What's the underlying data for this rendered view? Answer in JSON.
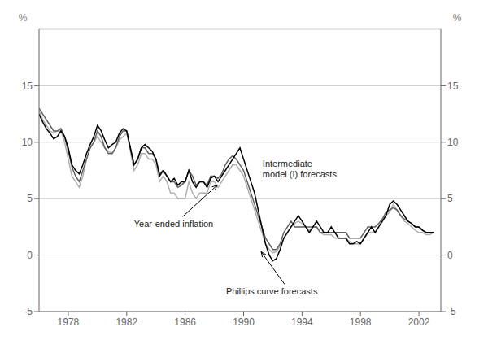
{
  "chart_data": {
    "type": "line",
    "ylabel": "%",
    "y2label": "%",
    "xlim": [
      1976.0,
      2003.5
    ],
    "xticks": [
      1978,
      1982,
      1986,
      1990,
      1994,
      1998,
      2002
    ],
    "ylim": [
      -5,
      20
    ],
    "yticks": [
      -5,
      0,
      5,
      10,
      15
    ],
    "y2lim": [
      -5,
      20
    ],
    "y2ticks": [
      -5,
      0,
      5,
      10,
      15
    ],
    "grid": true,
    "x": [
      1976.0,
      1976.25,
      1976.5,
      1976.75,
      1977.0,
      1977.25,
      1977.5,
      1977.75,
      1978.0,
      1978.25,
      1978.5,
      1978.75,
      1979.0,
      1979.25,
      1979.5,
      1979.75,
      1980.0,
      1980.25,
      1980.5,
      1980.75,
      1981.0,
      1981.25,
      1981.5,
      1981.75,
      1982.0,
      1982.25,
      1982.5,
      1982.75,
      1983.0,
      1983.25,
      1983.5,
      1983.75,
      1984.0,
      1984.25,
      1984.5,
      1984.75,
      1985.0,
      1985.25,
      1985.5,
      1985.75,
      1986.0,
      1986.25,
      1986.5,
      1986.75,
      1987.0,
      1987.25,
      1987.5,
      1987.75,
      1988.0,
      1988.25,
      1988.5,
      1988.75,
      1989.0,
      1989.25,
      1989.5,
      1989.75,
      1990.0,
      1990.25,
      1990.5,
      1990.75,
      1991.0,
      1991.25,
      1991.5,
      1991.75,
      1992.0,
      1992.25,
      1992.5,
      1992.75,
      1993.0,
      1993.25,
      1993.5,
      1993.75,
      1994.0,
      1994.25,
      1994.5,
      1994.75,
      1995.0,
      1995.25,
      1995.5,
      1995.75,
      1996.0,
      1996.25,
      1996.5,
      1996.75,
      1997.0,
      1997.25,
      1997.5,
      1997.75,
      1998.0,
      1998.25,
      1998.5,
      1998.75,
      1999.0,
      1999.25,
      1999.5,
      1999.75,
      2000.0,
      2000.25,
      2000.5,
      2000.75,
      2001.0,
      2001.25,
      2001.5,
      2001.75,
      2002.0,
      2002.25,
      2002.5,
      2002.75,
      2003.0
    ],
    "series": [
      {
        "color": "#b0b0b0",
        "values": [
          12.8,
          12.0,
          11.5,
          11.0,
          10.8,
          11.0,
          11.0,
          10.0,
          8.5,
          7.0,
          6.5,
          6.0,
          7.0,
          8.5,
          9.5,
          10.0,
          10.5,
          10.0,
          9.5,
          9.2,
          9.0,
          9.5,
          10.2,
          10.5,
          10.8,
          9.2,
          7.5,
          8.0,
          9.0,
          9.0,
          8.5,
          8.5,
          8.0,
          6.5,
          7.0,
          6.5,
          5.5,
          5.5,
          5.0,
          5.0,
          5.0,
          6.5,
          5.5,
          5.0,
          5.5,
          5.5,
          5.5,
          6.5,
          6.5,
          6.0,
          6.5,
          7.0,
          7.5,
          8.0,
          8.0,
          7.5,
          7.0,
          6.0,
          5.0,
          4.0,
          3.0,
          2.0,
          1.0,
          0.5,
          0.2,
          0.3,
          0.8,
          1.5,
          2.0,
          2.5,
          2.8,
          3.0,
          2.8,
          2.5,
          2.2,
          2.5,
          2.5,
          2.0,
          1.8,
          1.8,
          1.8,
          1.5,
          1.5,
          1.5,
          1.5,
          1.2,
          1.0,
          1.0,
          1.0,
          1.5,
          2.0,
          2.0,
          2.0,
          2.5,
          3.0,
          3.5,
          3.8,
          4.5,
          4.0,
          3.5,
          3.0,
          2.8,
          2.5,
          2.2,
          2.0,
          2.0,
          1.8,
          1.8,
          2.0
        ]
      },
      {
        "color": "#606060",
        "values": [
          13.0,
          12.5,
          12.0,
          11.5,
          11.0,
          11.0,
          11.2,
          10.5,
          9.2,
          7.8,
          7.0,
          6.5,
          7.5,
          8.5,
          9.5,
          10.0,
          11.0,
          10.5,
          9.5,
          9.0,
          9.0,
          9.5,
          10.5,
          11.0,
          11.0,
          9.5,
          8.0,
          8.5,
          9.5,
          9.5,
          9.0,
          9.0,
          8.5,
          7.2,
          7.5,
          7.0,
          6.5,
          6.5,
          6.0,
          6.2,
          6.5,
          7.5,
          7.0,
          6.2,
          6.5,
          6.5,
          6.2,
          7.0,
          7.0,
          6.8,
          7.2,
          8.0,
          8.5,
          8.8,
          8.5,
          8.0,
          7.5,
          6.5,
          5.5,
          4.5,
          3.5,
          2.5,
          1.5,
          1.0,
          0.5,
          0.5,
          1.0,
          2.0,
          2.5,
          3.0,
          2.5,
          2.5,
          2.5,
          2.5,
          2.5,
          2.5,
          2.5,
          2.0,
          2.0,
          2.0,
          2.0,
          2.0,
          2.0,
          2.0,
          2.0,
          1.5,
          1.5,
          1.5,
          1.5,
          2.0,
          2.5,
          2.5,
          2.5,
          2.8,
          3.2,
          3.8,
          4.0,
          4.2,
          4.0,
          3.5,
          3.2,
          3.0,
          2.8,
          2.5,
          2.5,
          2.2,
          2.0,
          2.0,
          2.0
        ]
      },
      {
        "color": "#000000",
        "values": [
          12.5,
          11.8,
          11.2,
          10.8,
          10.3,
          10.5,
          11.0,
          10.5,
          9.5,
          8.0,
          7.5,
          7.2,
          8.0,
          9.0,
          9.8,
          10.5,
          11.5,
          11.0,
          10.2,
          9.5,
          9.8,
          10.0,
          10.8,
          11.2,
          11.0,
          9.5,
          8.0,
          8.5,
          9.5,
          9.8,
          9.5,
          9.2,
          8.5,
          7.0,
          7.5,
          7.0,
          6.5,
          6.8,
          6.2,
          6.5,
          6.5,
          7.5,
          6.5,
          6.0,
          6.5,
          6.5,
          6.0,
          6.8,
          7.0,
          6.5,
          7.0,
          7.5,
          8.0,
          8.5,
          9.0,
          9.5,
          8.5,
          7.5,
          6.5,
          5.5,
          4.0,
          2.5,
          1.0,
          0.0,
          -0.5,
          -0.3,
          0.5,
          1.5,
          2.0,
          2.5,
          3.0,
          3.5,
          3.0,
          2.5,
          2.0,
          2.5,
          3.0,
          2.5,
          2.0,
          2.0,
          2.5,
          2.0,
          1.5,
          1.5,
          1.5,
          1.0,
          1.0,
          1.2,
          1.0,
          1.5,
          2.0,
          2.5,
          2.0,
          2.5,
          3.0,
          3.5,
          4.5,
          4.8,
          4.5,
          4.0,
          3.5,
          3.0,
          2.8,
          2.5,
          2.5,
          2.2,
          2.0,
          2.0,
          2.0
        ]
      }
    ],
    "annotations": [
      {
        "text": "Year-ended inflation",
        "x": 1982.5,
        "y": 3.2,
        "arrow_x": 1988.2,
        "arrow_y": 6.2
      },
      {
        "text": "Intermediate\nmodel (I) forecasts",
        "x": 1991.3,
        "y": 8.5
      },
      {
        "text": "Phillips curve forecasts",
        "x": 1988.8,
        "y": -2.8,
        "arrow_x": 1991.2,
        "arrow_y": 0.3
      }
    ]
  }
}
